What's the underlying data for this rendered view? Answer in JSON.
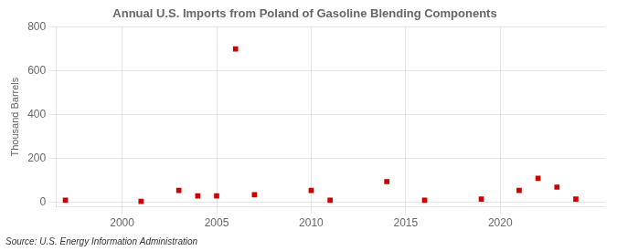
{
  "chart_data": {
    "type": "scatter",
    "title": "Annual U.S. Imports from Poland of Gasoline Blending Components",
    "ylabel": "Thousand Barrels",
    "annotations": [
      "Source: U.S. Energy Information Administration"
    ],
    "x": [
      1997,
      2001,
      2003,
      2004,
      2005,
      2006,
      2007,
      2010,
      2011,
      2014,
      2016,
      2019,
      2021,
      2022,
      2023,
      2024
    ],
    "values": [
      10,
      5,
      55,
      30,
      30,
      700,
      35,
      55,
      10,
      95,
      10,
      15,
      55,
      110,
      70,
      15
    ],
    "color": "#cc0000",
    "marker": "square",
    "xlim": [
      1996.5,
      2025.5
    ],
    "xticks": [
      2000,
      2005,
      2010,
      2015,
      2020
    ],
    "ylim": [
      -20,
      800
    ],
    "yticks": [
      0,
      200,
      400,
      600,
      800
    ],
    "grid": true
  }
}
